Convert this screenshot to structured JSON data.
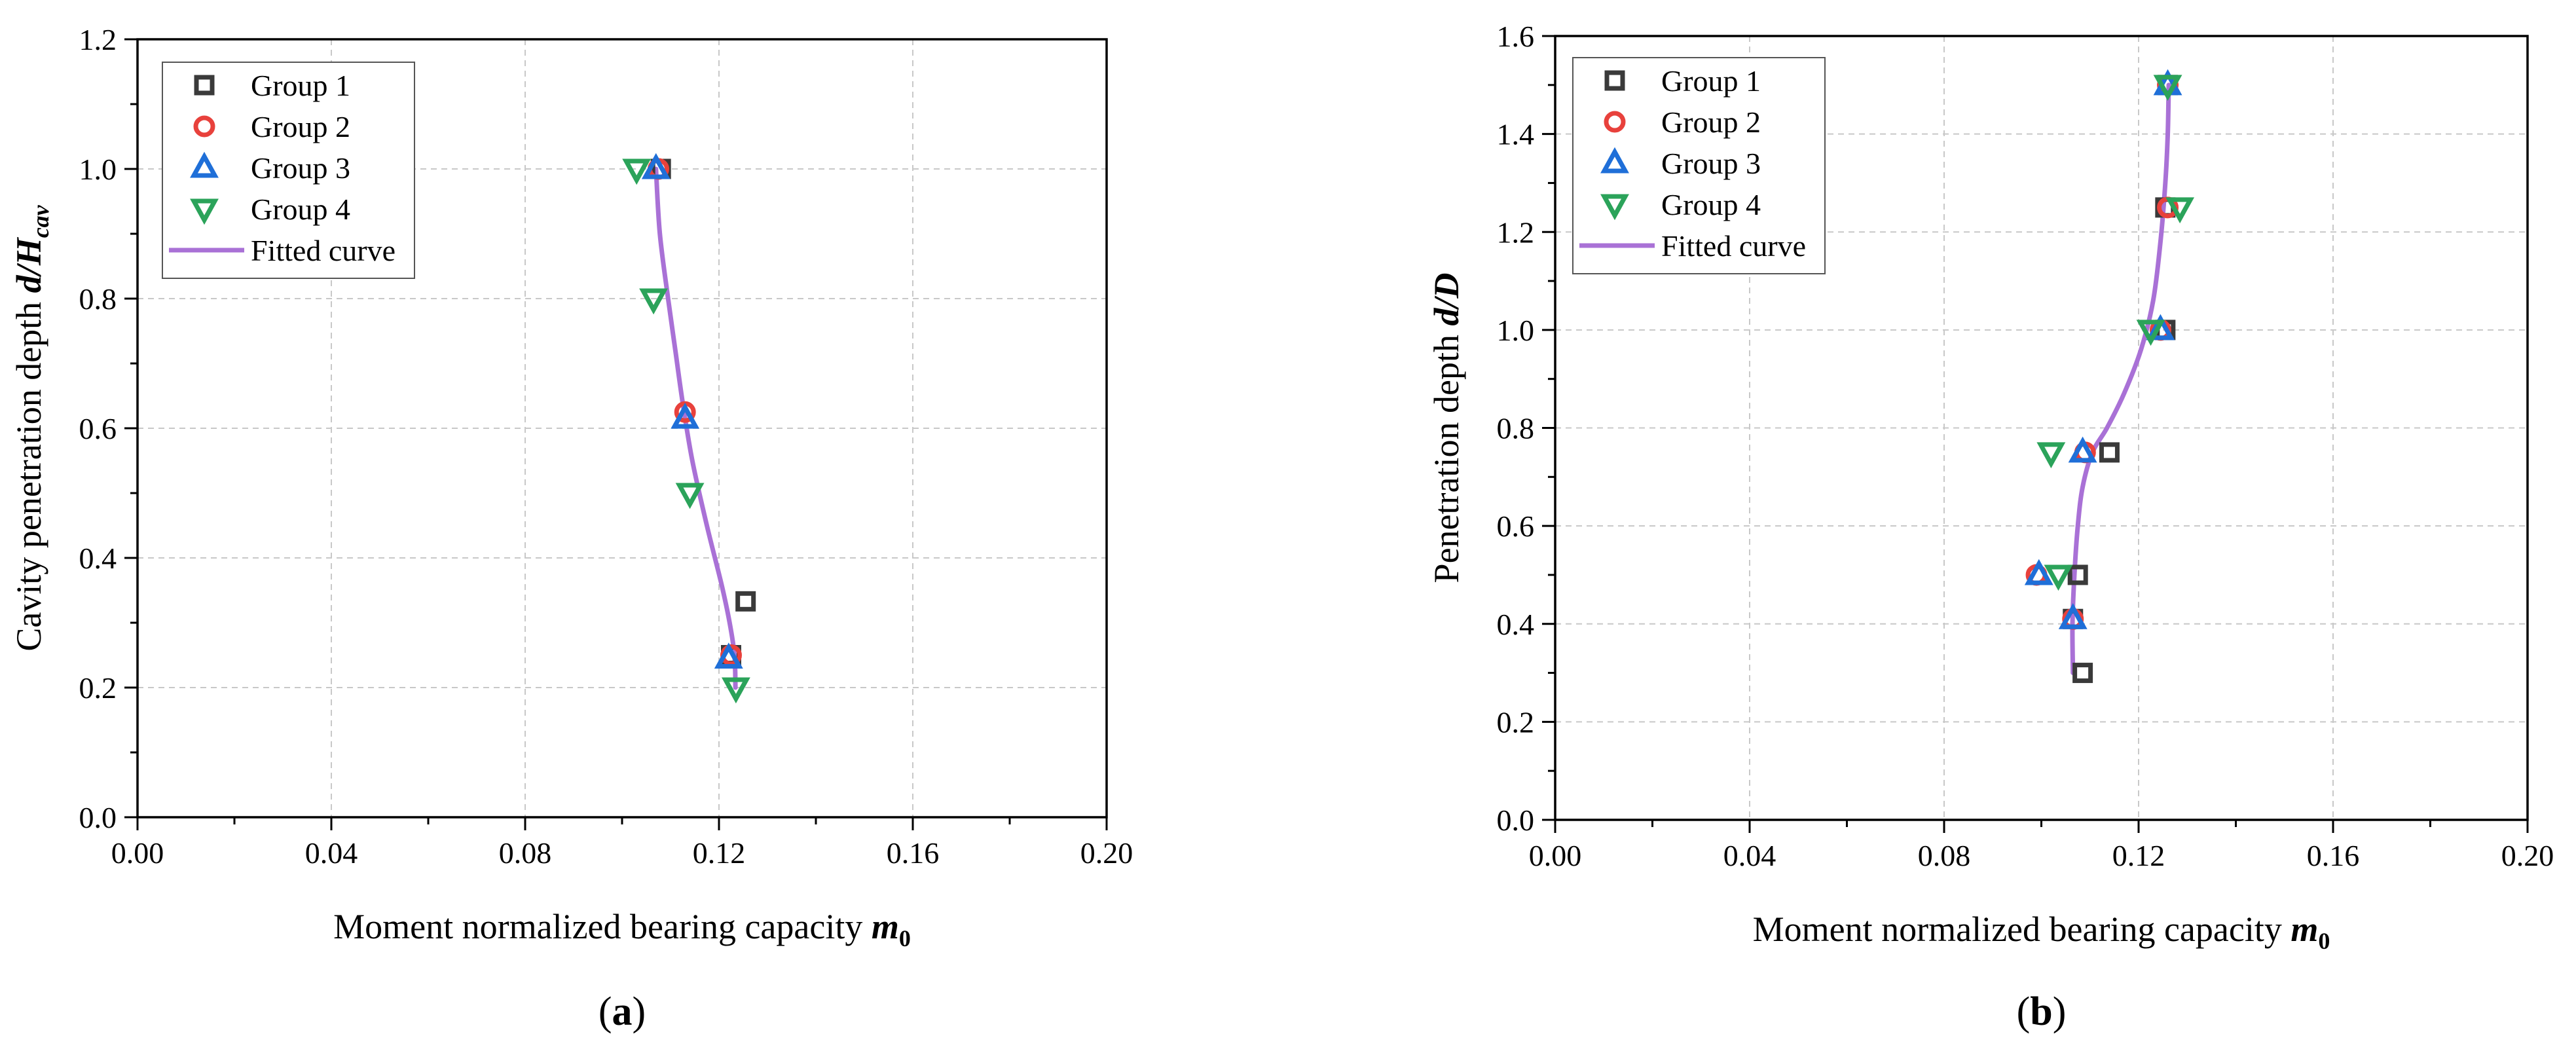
{
  "chart_data": [
    {
      "type": "scatter",
      "panel_label": "(a)",
      "title": "",
      "xlabel": "Moment normalized bearing capacity ",
      "xlabel_symbol": "m",
      "xlabel_sub": "0",
      "ylabel": "Cavity penetration depth ",
      "ylabel_symbol": "d/H",
      "ylabel_sub": "cav",
      "xlim": [
        0,
        0.2
      ],
      "ylim": [
        0,
        1.2
      ],
      "xticks": [
        0,
        0.04,
        0.08,
        0.12,
        0.16,
        0.2
      ],
      "xtick_labels": [
        "0.00",
        "0.04",
        "0.08",
        "0.12",
        "0.16",
        "0.20"
      ],
      "yticks": [
        0,
        0.2,
        0.4,
        0.6,
        0.8,
        1.0,
        1.2
      ],
      "ytick_labels": [
        "0.0",
        "0.2",
        "0.4",
        "0.6",
        "0.8",
        "1.0",
        "1.2"
      ],
      "grid": true,
      "legend_position": "top-left",
      "series": [
        {
          "name": "Group 1",
          "marker": "square",
          "color": "#3a3a3a",
          "x": [
            0.108,
            0.1255,
            0.1225
          ],
          "y": [
            1.0,
            0.333,
            0.25
          ]
        },
        {
          "name": "Group 2",
          "marker": "circle",
          "color": "#e8413c",
          "x": [
            0.1075,
            0.113,
            0.1225
          ],
          "y": [
            1.0,
            0.625,
            0.25
          ]
        },
        {
          "name": "Group 3",
          "marker": "triangle-up",
          "color": "#1f6fd8",
          "x": [
            0.107,
            0.113,
            0.122
          ],
          "y": [
            1.0,
            0.615,
            0.245
          ]
        },
        {
          "name": "Group 4",
          "marker": "triangle-down",
          "color": "#2ba35a",
          "x": [
            0.103,
            0.1065,
            0.114,
            0.1235
          ],
          "y": [
            1.0,
            0.8,
            0.5,
            0.2
          ]
        },
        {
          "name": "Fitted curve",
          "marker": "line",
          "color": "#a971d6",
          "x": [
            0.107,
            0.1078,
            0.1095,
            0.111,
            0.1125,
            0.1145,
            0.1175,
            0.1205,
            0.1222,
            0.1232,
            0.1234
          ],
          "y": [
            1.0,
            0.9,
            0.8,
            0.72,
            0.64,
            0.55,
            0.45,
            0.36,
            0.3,
            0.25,
            0.2
          ]
        }
      ]
    },
    {
      "type": "scatter",
      "panel_label": "(b)",
      "title": "",
      "xlabel": "Moment normalized bearing capacity ",
      "xlabel_symbol": "m",
      "xlabel_sub": "0",
      "ylabel": "Penetration depth ",
      "ylabel_symbol": "d/D",
      "ylabel_sub": "",
      "xlim": [
        0,
        0.2
      ],
      "ylim": [
        0,
        1.6
      ],
      "xticks": [
        0,
        0.04,
        0.08,
        0.12,
        0.16,
        0.2
      ],
      "xtick_labels": [
        "0.00",
        "0.04",
        "0.08",
        "0.12",
        "0.16",
        "0.20"
      ],
      "yticks": [
        0,
        0.2,
        0.4,
        0.6,
        0.8,
        1.0,
        1.2,
        1.4,
        1.6
      ],
      "ytick_labels": [
        "0.0",
        "0.2",
        "0.4",
        "0.6",
        "0.8",
        "1.0",
        "1.2",
        "1.4",
        "1.6"
      ],
      "grid": true,
      "legend_position": "top-left",
      "series": [
        {
          "name": "Group 1",
          "marker": "square",
          "color": "#3a3a3a",
          "x": [
            0.126,
            0.1255,
            0.1255,
            0.114,
            0.1075,
            0.1065,
            0.1085
          ],
          "y": [
            1.5,
            1.25,
            1.0,
            0.75,
            0.5,
            0.41,
            0.3
          ]
        },
        {
          "name": "Group 2",
          "marker": "circle",
          "color": "#e8413c",
          "x": [
            0.126,
            0.126,
            0.1245,
            0.109,
            0.099,
            0.1065
          ],
          "y": [
            1.5,
            1.25,
            1.0,
            0.75,
            0.5,
            0.41
          ]
        },
        {
          "name": "Group 3",
          "marker": "triangle-up",
          "color": "#1f6fd8",
          "x": [
            0.126,
            0.1245,
            0.1085,
            0.0995,
            0.1065
          ],
          "y": [
            1.5,
            1.0,
            0.75,
            0.5,
            0.41
          ]
        },
        {
          "name": "Group 4",
          "marker": "triangle-down",
          "color": "#2ba35a",
          "x": [
            0.126,
            0.1285,
            0.1225,
            0.102,
            0.1035
          ],
          "y": [
            1.5,
            1.25,
            1.0,
            0.75,
            0.5
          ]
        },
        {
          "name": "Fitted curve",
          "marker": "line",
          "color": "#a971d6",
          "x": [
            0.1065,
            0.1064,
            0.1068,
            0.1075,
            0.1085,
            0.1105,
            0.1135,
            0.117,
            0.1205,
            0.123,
            0.1245,
            0.1255,
            0.126,
            0.1262
          ],
          "y": [
            0.3,
            0.4,
            0.5,
            0.6,
            0.68,
            0.75,
            0.8,
            0.87,
            0.96,
            1.06,
            1.18,
            1.3,
            1.4,
            1.5
          ]
        }
      ]
    }
  ]
}
